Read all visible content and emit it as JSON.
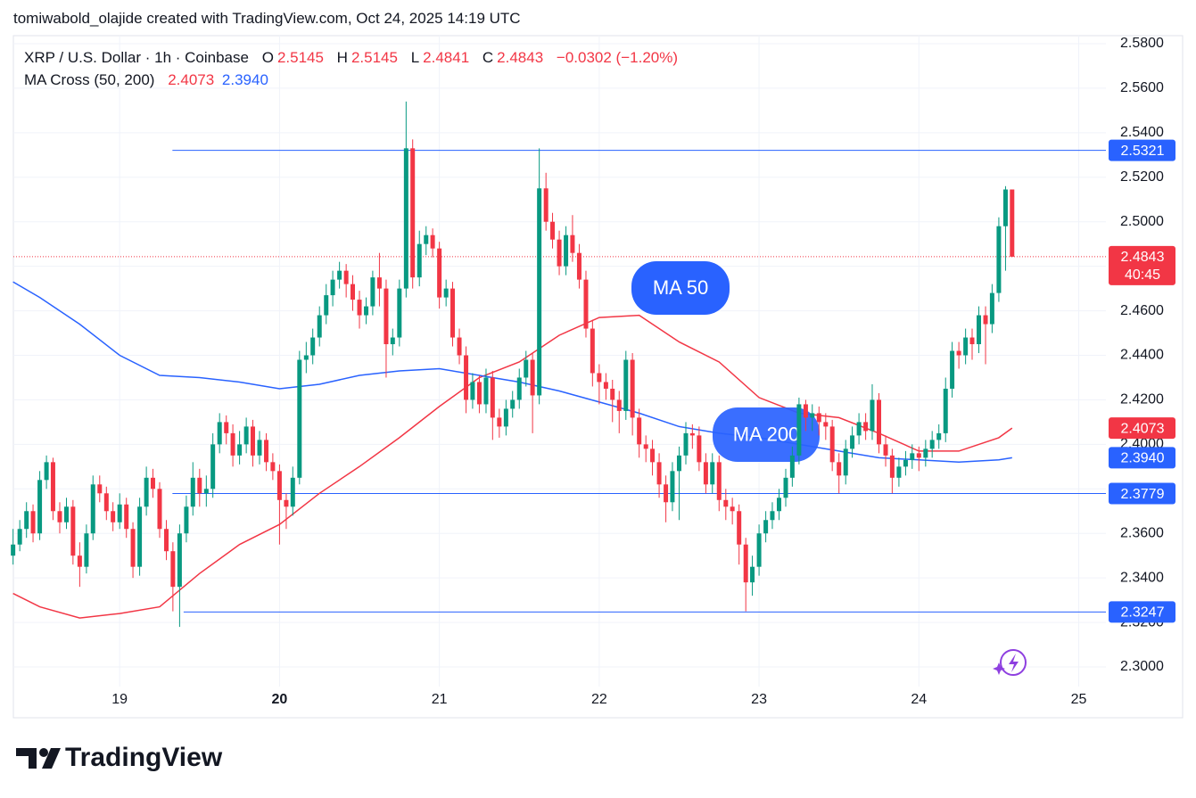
{
  "header": {
    "text": "tomiwabold_olajide created with TradingView.com, Oct 24, 2025 14:19 UTC"
  },
  "footer": {
    "logo": "TradingView"
  },
  "chart_data": {
    "type": "candlestick",
    "symbol": "XRP / U.S. Dollar · 1h · Coinbase",
    "legend": {
      "o": "O",
      "h": "H",
      "l": "L",
      "c": "C",
      "change": "−0.0302 (−1.20%)",
      "indicator": "MA Cross (50, 200)",
      "indicator_values": [
        "2.4073",
        "2.3940"
      ]
    },
    "up_color": "#089981",
    "down_color": "#f23645",
    "x": [
      18.333,
      18.375,
      18.417,
      18.458,
      18.5,
      18.542,
      18.583,
      18.625,
      18.667,
      18.708,
      18.75,
      18.792,
      18.833,
      18.875,
      18.917,
      18.958,
      19,
      19.042,
      19.083,
      19.125,
      19.167,
      19.208,
      19.25,
      19.292,
      19.333,
      19.375,
      19.417,
      19.458,
      19.5,
      19.542,
      19.583,
      19.625,
      19.667,
      19.708,
      19.75,
      19.792,
      19.833,
      19.875,
      19.917,
      19.958,
      20,
      20.042,
      20.083,
      20.125,
      20.167,
      20.208,
      20.25,
      20.292,
      20.333,
      20.375,
      20.417,
      20.458,
      20.5,
      20.542,
      20.583,
      20.625,
      20.667,
      20.708,
      20.75,
      20.792,
      20.833,
      20.875,
      20.917,
      20.958,
      21,
      21.042,
      21.083,
      21.125,
      21.167,
      21.208,
      21.25,
      21.292,
      21.333,
      21.375,
      21.417,
      21.458,
      21.5,
      21.542,
      21.583,
      21.625,
      21.667,
      21.708,
      21.75,
      21.792,
      21.833,
      21.875,
      21.917,
      21.958,
      22,
      22.042,
      22.083,
      22.125,
      22.167,
      22.208,
      22.25,
      22.292,
      22.333,
      22.375,
      22.417,
      22.458,
      22.5,
      22.542,
      22.583,
      22.625,
      22.667,
      22.708,
      22.75,
      22.792,
      22.833,
      22.875,
      22.917,
      22.958,
      23,
      23.042,
      23.083,
      23.125,
      23.167,
      23.208,
      23.25,
      23.292,
      23.333,
      23.375,
      23.417,
      23.458,
      23.5,
      23.542,
      23.583,
      23.625,
      23.667,
      23.708,
      23.75,
      23.792,
      23.833,
      23.875,
      23.917,
      23.958,
      24,
      24.042,
      24.083,
      24.125,
      24.167,
      24.208,
      24.25,
      24.292,
      24.333,
      24.375,
      24.417,
      24.458,
      24.5,
      24.542,
      24.583
    ],
    "ohlc": [
      [
        2.35,
        2.362,
        2.346,
        2.355
      ],
      [
        2.355,
        2.366,
        2.352,
        2.362
      ],
      [
        2.362,
        2.374,
        2.358,
        2.37
      ],
      [
        2.37,
        2.373,
        2.356,
        2.36
      ],
      [
        2.36,
        2.388,
        2.357,
        2.384
      ],
      [
        2.384,
        2.395,
        2.38,
        2.392
      ],
      [
        2.392,
        2.394,
        2.366,
        2.37
      ],
      [
        2.37,
        2.374,
        2.36,
        2.365
      ],
      [
        2.365,
        2.376,
        2.362,
        2.372
      ],
      [
        2.372,
        2.375,
        2.346,
        2.35
      ],
      [
        2.35,
        2.356,
        2.336,
        2.345
      ],
      [
        2.345,
        2.364,
        2.342,
        2.36
      ],
      [
        2.36,
        2.386,
        2.357,
        2.382
      ],
      [
        2.382,
        2.386,
        2.374,
        2.378
      ],
      [
        2.378,
        2.381,
        2.366,
        2.37
      ],
      [
        2.37,
        2.374,
        2.361,
        2.365
      ],
      [
        2.365,
        2.378,
        2.362,
        2.373
      ],
      [
        2.373,
        2.376,
        2.358,
        2.362
      ],
      [
        2.362,
        2.365,
        2.34,
        2.345
      ],
      [
        2.345,
        2.376,
        2.341,
        2.372
      ],
      [
        2.372,
        2.39,
        2.368,
        2.385
      ],
      [
        2.385,
        2.389,
        2.376,
        2.38
      ],
      [
        2.38,
        2.383,
        2.358,
        2.362
      ],
      [
        2.362,
        2.366,
        2.348,
        2.352
      ],
      [
        2.352,
        2.356,
        2.325,
        2.336
      ],
      [
        2.336,
        2.364,
        2.318,
        2.36
      ],
      [
        2.36,
        2.377,
        2.356,
        2.372
      ],
      [
        2.372,
        2.392,
        2.368,
        2.385
      ],
      [
        2.385,
        2.389,
        2.372,
        2.378
      ],
      [
        2.378,
        2.386,
        2.372,
        2.38
      ],
      [
        2.38,
        2.405,
        2.376,
        2.4
      ],
      [
        2.4,
        2.414,
        2.396,
        2.41
      ],
      [
        2.41,
        2.413,
        2.4,
        2.405
      ],
      [
        2.405,
        2.409,
        2.39,
        2.395
      ],
      [
        2.395,
        2.406,
        2.391,
        2.4
      ],
      [
        2.4,
        2.412,
        2.396,
        2.408
      ],
      [
        2.408,
        2.411,
        2.39,
        2.395
      ],
      [
        2.395,
        2.406,
        2.391,
        2.402
      ],
      [
        2.402,
        2.405,
        2.388,
        2.392
      ],
      [
        2.392,
        2.396,
        2.384,
        2.388
      ],
      [
        2.388,
        2.391,
        2.355,
        2.375
      ],
      [
        2.375,
        2.378,
        2.362,
        2.372
      ],
      [
        2.372,
        2.39,
        2.368,
        2.385
      ],
      [
        2.385,
        2.442,
        2.382,
        2.438
      ],
      [
        2.438,
        2.446,
        2.432,
        2.44
      ],
      [
        2.44,
        2.452,
        2.436,
        2.448
      ],
      [
        2.448,
        2.462,
        2.444,
        2.458
      ],
      [
        2.458,
        2.472,
        2.454,
        2.467
      ],
      [
        2.467,
        2.478,
        2.462,
        2.474
      ],
      [
        2.474,
        2.482,
        2.47,
        2.478
      ],
      [
        2.478,
        2.481,
        2.466,
        2.472
      ],
      [
        2.472,
        2.476,
        2.46,
        2.465
      ],
      [
        2.465,
        2.469,
        2.452,
        2.458
      ],
      [
        2.458,
        2.466,
        2.454,
        2.462
      ],
      [
        2.462,
        2.478,
        2.458,
        2.475
      ],
      [
        2.475,
        2.486,
        2.462,
        2.47
      ],
      [
        2.47,
        2.474,
        2.43,
        2.445
      ],
      [
        2.445,
        2.452,
        2.44,
        2.448
      ],
      [
        2.448,
        2.474,
        2.444,
        2.47
      ],
      [
        2.47,
        2.554,
        2.466,
        2.533
      ],
      [
        2.533,
        2.537,
        2.47,
        2.475
      ],
      [
        2.475,
        2.496,
        2.471,
        2.49
      ],
      [
        2.49,
        2.498,
        2.485,
        2.494
      ],
      [
        2.494,
        2.497,
        2.484,
        2.488
      ],
      [
        2.488,
        2.491,
        2.461,
        2.466
      ],
      [
        2.466,
        2.474,
        2.462,
        2.47
      ],
      [
        2.47,
        2.473,
        2.444,
        2.448
      ],
      [
        2.448,
        2.452,
        2.436,
        2.44
      ],
      [
        2.44,
        2.444,
        2.414,
        2.42
      ],
      [
        2.42,
        2.432,
        2.416,
        2.428
      ],
      [
        2.428,
        2.431,
        2.414,
        2.418
      ],
      [
        2.418,
        2.434,
        2.414,
        2.43
      ],
      [
        2.43,
        2.433,
        2.402,
        2.412
      ],
      [
        2.412,
        2.416,
        2.403,
        2.408
      ],
      [
        2.408,
        2.42,
        2.404,
        2.416
      ],
      [
        2.416,
        2.424,
        2.412,
        2.42
      ],
      [
        2.42,
        2.434,
        2.416,
        2.43
      ],
      [
        2.43,
        2.442,
        2.426,
        2.438
      ],
      [
        2.438,
        2.441,
        2.405,
        2.422
      ],
      [
        2.422,
        2.533,
        2.418,
        2.515
      ],
      [
        2.515,
        2.522,
        2.496,
        2.5
      ],
      [
        2.5,
        2.504,
        2.488,
        2.492
      ],
      [
        2.492,
        2.496,
        2.476,
        2.48
      ],
      [
        2.48,
        2.498,
        2.476,
        2.494
      ],
      [
        2.494,
        2.503,
        2.482,
        2.486
      ],
      [
        2.486,
        2.49,
        2.47,
        2.474
      ],
      [
        2.474,
        2.478,
        2.448,
        2.452
      ],
      [
        2.452,
        2.456,
        2.426,
        2.432
      ],
      [
        2.432,
        2.436,
        2.418,
        2.428
      ],
      [
        2.428,
        2.432,
        2.42,
        2.425
      ],
      [
        2.425,
        2.429,
        2.41,
        2.42
      ],
      [
        2.42,
        2.424,
        2.405,
        2.415
      ],
      [
        2.415,
        2.442,
        2.411,
        2.438
      ],
      [
        2.438,
        2.441,
        2.404,
        2.412
      ],
      [
        2.412,
        2.416,
        2.394,
        2.4
      ],
      [
        2.4,
        2.404,
        2.392,
        2.398
      ],
      [
        2.398,
        2.402,
        2.386,
        2.392
      ],
      [
        2.392,
        2.396,
        2.376,
        2.382
      ],
      [
        2.382,
        2.386,
        2.365,
        2.374
      ],
      [
        2.374,
        2.392,
        2.37,
        2.388
      ],
      [
        2.388,
        2.399,
        2.366,
        2.395
      ],
      [
        2.395,
        2.41,
        2.391,
        2.405
      ],
      [
        2.405,
        2.409,
        2.398,
        2.404
      ],
      [
        2.404,
        2.408,
        2.388,
        2.392
      ],
      [
        2.392,
        2.396,
        2.378,
        2.382
      ],
      [
        2.382,
        2.396,
        2.378,
        2.392
      ],
      [
        2.392,
        2.395,
        2.37,
        2.375
      ],
      [
        2.375,
        2.38,
        2.366,
        2.372
      ],
      [
        2.372,
        2.376,
        2.364,
        2.37
      ],
      [
        2.37,
        2.373,
        2.346,
        2.355
      ],
      [
        2.355,
        2.358,
        2.325,
        2.338
      ],
      [
        2.338,
        2.35,
        2.332,
        2.345
      ],
      [
        2.345,
        2.364,
        2.341,
        2.36
      ],
      [
        2.36,
        2.37,
        2.356,
        2.366
      ],
      [
        2.366,
        2.374,
        2.362,
        2.37
      ],
      [
        2.37,
        2.38,
        2.366,
        2.376
      ],
      [
        2.376,
        2.389,
        2.372,
        2.385
      ],
      [
        2.385,
        2.399,
        2.381,
        2.395
      ],
      [
        2.395,
        2.421,
        2.391,
        2.418
      ],
      [
        2.418,
        2.42,
        2.406,
        2.412
      ],
      [
        2.412,
        2.418,
        2.406,
        2.414
      ],
      [
        2.414,
        2.417,
        2.404,
        2.41
      ],
      [
        2.41,
        2.414,
        2.402,
        2.408
      ],
      [
        2.408,
        2.411,
        2.388,
        2.392
      ],
      [
        2.392,
        2.396,
        2.378,
        2.386
      ],
      [
        2.386,
        2.402,
        2.382,
        2.398
      ],
      [
        2.398,
        2.408,
        2.394,
        2.404
      ],
      [
        2.404,
        2.414,
        2.4,
        2.41
      ],
      [
        2.41,
        2.414,
        2.402,
        2.406
      ],
      [
        2.406,
        2.427,
        2.402,
        2.42
      ],
      [
        2.42,
        2.423,
        2.396,
        2.4
      ],
      [
        2.4,
        2.404,
        2.39,
        2.395
      ],
      [
        2.395,
        2.398,
        2.378,
        2.385
      ],
      [
        2.385,
        2.394,
        2.381,
        2.39
      ],
      [
        2.39,
        2.397,
        2.386,
        2.393
      ],
      [
        2.393,
        2.4,
        2.389,
        2.396
      ],
      [
        2.396,
        2.399,
        2.388,
        2.394
      ],
      [
        2.394,
        2.402,
        2.39,
        2.398
      ],
      [
        2.398,
        2.406,
        2.394,
        2.402
      ],
      [
        2.402,
        2.409,
        2.398,
        2.405
      ],
      [
        2.405,
        2.43,
        2.401,
        2.425
      ],
      [
        2.425,
        2.446,
        2.421,
        2.442
      ],
      [
        2.442,
        2.446,
        2.434,
        2.44
      ],
      [
        2.44,
        2.452,
        2.436,
        2.448
      ],
      [
        2.448,
        2.452,
        2.438,
        2.445
      ],
      [
        2.445,
        2.462,
        2.441,
        2.458
      ],
      [
        2.458,
        2.462,
        2.436,
        2.454
      ],
      [
        2.454,
        2.472,
        2.45,
        2.468
      ],
      [
        2.468,
        2.502,
        2.464,
        2.498
      ],
      [
        2.498,
        2.516,
        2.478,
        2.5145
      ],
      [
        2.5145,
        2.5145,
        2.4841,
        2.4843
      ]
    ],
    "series": [
      {
        "name": "MA 50",
        "color": "#f23645",
        "x": [
          18.333,
          18.5,
          18.75,
          19,
          19.25,
          19.5,
          19.75,
          20,
          20.25,
          20.5,
          20.75,
          21,
          21.25,
          21.5,
          21.75,
          22,
          22.25,
          22.5,
          22.75,
          23,
          23.25,
          23.5,
          23.75,
          24,
          24.25,
          24.5,
          24.583
        ],
        "values": [
          2.333,
          2.327,
          2.322,
          2.324,
          2.327,
          2.342,
          2.355,
          2.364,
          2.378,
          2.39,
          2.403,
          2.417,
          2.43,
          2.437,
          2.449,
          2.457,
          2.458,
          2.446,
          2.437,
          2.421,
          2.414,
          2.412,
          2.405,
          2.397,
          2.397,
          2.403,
          2.4073
        ]
      },
      {
        "name": "MA 200",
        "color": "#2962ff",
        "x": [
          18.333,
          18.5,
          18.75,
          19,
          19.25,
          19.5,
          19.75,
          20,
          20.25,
          20.5,
          20.75,
          21,
          21.25,
          21.5,
          21.75,
          22,
          22.25,
          22.5,
          22.75,
          23,
          23.25,
          23.5,
          23.75,
          24,
          24.25,
          24.5,
          24.583
        ],
        "values": [
          2.473,
          2.466,
          2.454,
          2.44,
          2.431,
          2.43,
          2.428,
          2.425,
          2.427,
          2.431,
          2.433,
          2.434,
          2.431,
          2.428,
          2.424,
          2.419,
          2.414,
          2.408,
          2.405,
          2.403,
          2.4,
          2.397,
          2.394,
          2.393,
          2.392,
          2.393,
          2.394
        ]
      }
    ],
    "levels": [
      {
        "value": 2.5321,
        "x0": 19.33,
        "color": "#2962ff"
      },
      {
        "value": 2.3779,
        "x0": 19.33,
        "color": "#2962ff"
      },
      {
        "value": 2.3247,
        "x0": 19.4,
        "color": "#2962ff"
      }
    ],
    "countdown": "40:45",
    "xlim": [
      18.335,
      25.17
    ],
    "xticks": [
      19,
      20,
      21,
      22,
      23,
      24,
      25
    ],
    "xticks_bold": [
      false,
      true,
      false,
      false,
      false,
      false,
      false
    ],
    "ylim": [
      2.2912,
      2.5836
    ],
    "yticks": [
      {
        "value": 2.3,
        "label": "2.3000"
      },
      {
        "value": 2.32,
        "label": "2.3200"
      },
      {
        "value": 2.34,
        "label": "2.3400"
      },
      {
        "value": 2.36,
        "label": "2.3600"
      },
      {
        "value": 2.38,
        "label": "2.3800"
      },
      {
        "value": 2.4,
        "label": "2.4000"
      },
      {
        "value": 2.42,
        "label": "2.4200"
      },
      {
        "value": 2.44,
        "label": "2.4400"
      },
      {
        "value": 2.46,
        "label": "2.4600"
      },
      {
        "value": 2.48,
        "label": "2.4800"
      },
      {
        "value": 2.5,
        "label": "2.5000"
      },
      {
        "value": 2.52,
        "label": "2.5200"
      },
      {
        "value": 2.54,
        "label": "2.5400"
      },
      {
        "value": 2.56,
        "label": "2.5600"
      },
      {
        "value": 2.58,
        "label": "2.5800"
      }
    ],
    "grid": true
  }
}
